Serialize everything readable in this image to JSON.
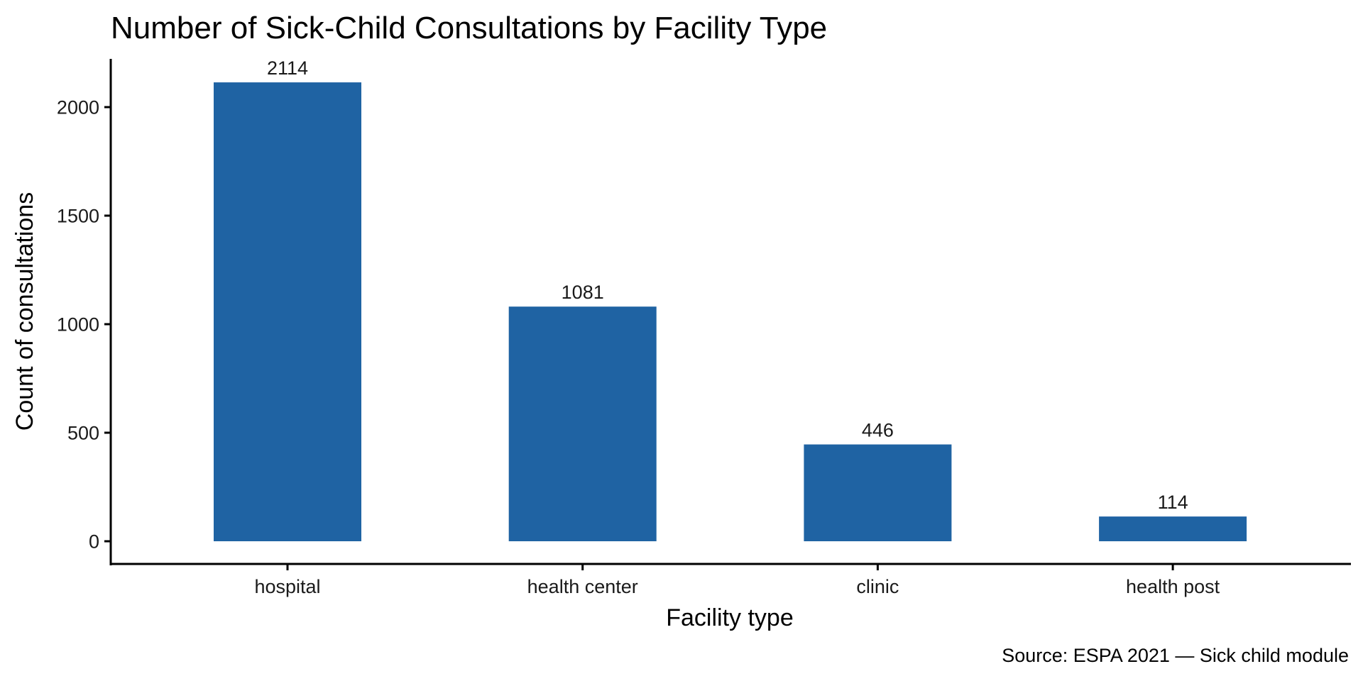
{
  "chart_data": {
    "type": "bar",
    "title": "Number of Sick-Child Consultations by Facility Type",
    "xlabel": "Facility type",
    "ylabel": "Count of consultations",
    "caption": "Source: ESPA 2021 — Sick child module",
    "categories": [
      "hospital",
      "health center",
      "clinic",
      "health post"
    ],
    "values": [
      2114,
      1081,
      446,
      114
    ],
    "data_labels": [
      "2114",
      "1081",
      "446",
      "114"
    ],
    "yticks": [
      0,
      500,
      1000,
      1500,
      2000
    ],
    "ytick_labels": [
      "0",
      "500",
      "1000",
      "1500",
      "2000"
    ],
    "ylim": [
      -105,
      2230
    ],
    "grid": false,
    "legend": "none",
    "bar_color": "#1f63a3"
  }
}
